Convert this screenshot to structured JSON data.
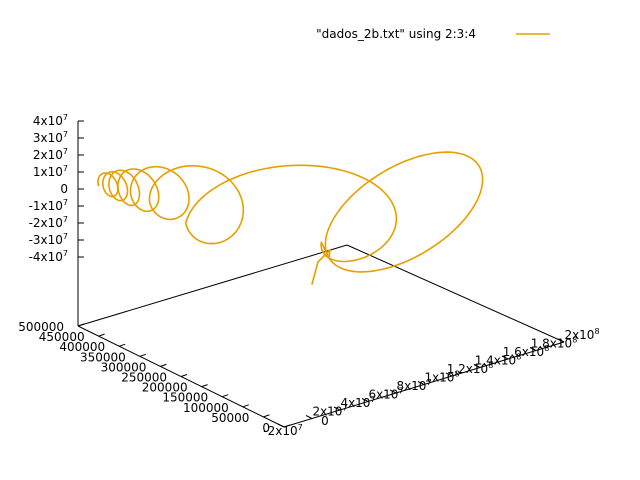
{
  "chart_data": {
    "type": "line",
    "projection": "3d",
    "title": "",
    "legend": {
      "label": "\"dados_2b.txt\" using 2:3:4",
      "position": "top-right",
      "color": "#e5a000"
    },
    "x_axis": {
      "ticks": [
        {
          "label": "0",
          "value": 0,
          "exp": ""
        },
        {
          "label": "2x10",
          "value": 20000000,
          "exp": "7"
        },
        {
          "label": "4x10",
          "value": 40000000,
          "exp": "7"
        },
        {
          "label": "6x10",
          "value": 60000000,
          "exp": "7"
        },
        {
          "label": "8x10",
          "value": 80000000,
          "exp": "7"
        },
        {
          "label": "1x10",
          "value": 100000000,
          "exp": "8"
        },
        {
          "label": "1.2x10",
          "value": 120000000,
          "exp": "8"
        },
        {
          "label": "1.4x10",
          "value": 140000000,
          "exp": "8"
        },
        {
          "label": "1.6x10",
          "value": 160000000,
          "exp": "8"
        },
        {
          "label": "1.8x10",
          "value": 180000000,
          "exp": "8"
        },
        {
          "label": "2x10",
          "value": 200000000,
          "exp": "8"
        }
      ],
      "range": [
        0,
        200000000
      ]
    },
    "y_axis": {
      "ticks": [
        {
          "label": "0",
          "value": 0
        },
        {
          "label": "50000",
          "value": 50000
        },
        {
          "label": "100000",
          "value": 100000
        },
        {
          "label": "150000",
          "value": 150000
        },
        {
          "label": "200000",
          "value": 200000
        },
        {
          "label": "250000",
          "value": 250000
        },
        {
          "label": "300000",
          "value": 300000
        },
        {
          "label": "350000",
          "value": 350000
        },
        {
          "label": "400000",
          "value": 400000
        },
        {
          "label": "450000",
          "value": 450000
        },
        {
          "label": "500000",
          "value": 500000
        }
      ],
      "corner_label": {
        "label": "-2x10",
        "exp": "7"
      },
      "range": [
        0,
        500000
      ]
    },
    "z_axis": {
      "ticks": [
        {
          "label": "4x10",
          "value": 40000000,
          "exp": "7"
        },
        {
          "label": "3x10",
          "value": 30000000,
          "exp": "7"
        },
        {
          "label": "2x10",
          "value": 20000000,
          "exp": "7"
        },
        {
          "label": "1x10",
          "value": 10000000,
          "exp": "7"
        },
        {
          "label": "0",
          "value": 0,
          "exp": ""
        },
        {
          "label": "-1x10",
          "value": -10000000,
          "exp": "7"
        },
        {
          "label": "-2x10",
          "value": -20000000,
          "exp": "7"
        },
        {
          "label": "-3x10",
          "value": -30000000,
          "exp": "7"
        },
        {
          "label": "-4x10",
          "value": -40000000,
          "exp": "7"
        }
      ],
      "range": [
        -40000000,
        40000000
      ]
    },
    "series": [
      {
        "description": "helical trajectory of a moving point: loops of increasing radius as it progresses, starting small at the back-left and ending with the largest loop",
        "color": "#e5a000",
        "loops": 8
      }
    ],
    "grid": false
  }
}
